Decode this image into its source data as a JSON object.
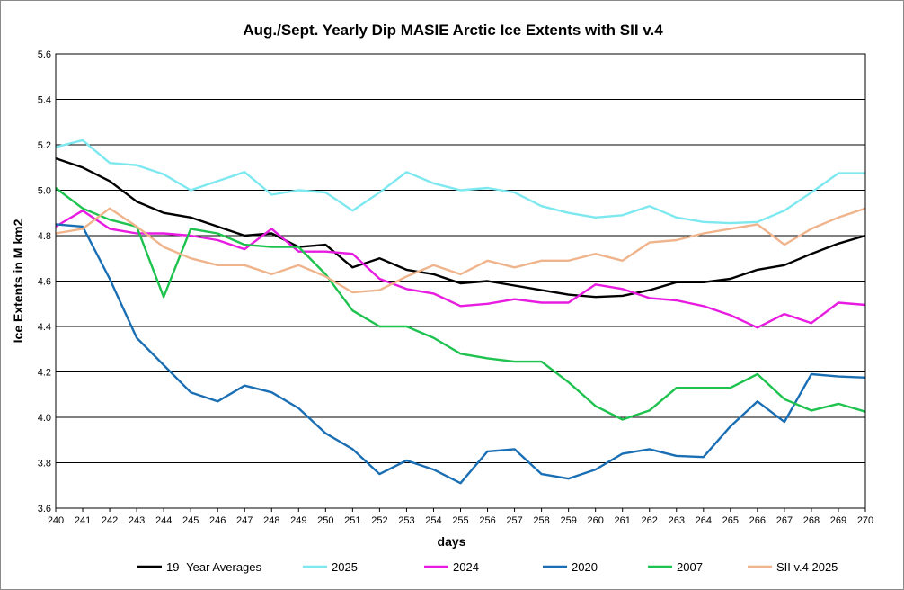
{
  "chart_data": {
    "type": "line",
    "title": "Aug./Sept. Yearly Dip MASIE Arctic Ice Extents with SII v.4",
    "xlabel": "days",
    "ylabel": "Ice Extents in M km2",
    "x": [
      240,
      241,
      242,
      243,
      244,
      245,
      246,
      247,
      248,
      249,
      250,
      251,
      252,
      253,
      254,
      255,
      256,
      257,
      258,
      259,
      260,
      261,
      262,
      263,
      264,
      265,
      266,
      267,
      268,
      269,
      270
    ],
    "xlim": [
      240,
      270
    ],
    "ylim": [
      3.6,
      5.6
    ],
    "yticks": [
      "3.6",
      "3.8",
      "4.0",
      "4.2",
      "4.4",
      "4.6",
      "4.8",
      "5.0",
      "5.2",
      "5.4",
      "5.6"
    ],
    "grid": "horizontal",
    "legend_position": "bottom",
    "series": [
      {
        "name": "19- Year Averages",
        "color": "#000000",
        "values": [
          5.14,
          5.1,
          5.04,
          4.95,
          4.9,
          4.88,
          4.84,
          4.8,
          4.81,
          4.75,
          4.76,
          4.66,
          4.7,
          4.65,
          4.63,
          4.59,
          4.6,
          4.58,
          4.56,
          4.54,
          4.53,
          4.535,
          4.56,
          4.595,
          4.595,
          4.61,
          4.65,
          4.67,
          4.72,
          4.765,
          4.8
        ]
      },
      {
        "name": "2025",
        "color": "#7ee8f0",
        "values": [
          5.19,
          5.22,
          5.12,
          5.11,
          5.07,
          5.0,
          5.04,
          5.08,
          4.98,
          5.0,
          4.99,
          4.91,
          4.99,
          5.08,
          5.03,
          5.0,
          5.01,
          4.99,
          4.93,
          4.9,
          4.88,
          4.89,
          4.93,
          4.88,
          4.86,
          4.855,
          4.86,
          4.91,
          4.99,
          5.075,
          5.075
        ]
      },
      {
        "name": "2024",
        "color": "#e81ce0",
        "values": [
          4.84,
          4.91,
          4.83,
          4.81,
          4.81,
          4.8,
          4.78,
          4.74,
          4.83,
          4.73,
          4.73,
          4.72,
          4.61,
          4.565,
          4.545,
          4.49,
          4.5,
          4.52,
          4.505,
          4.505,
          4.585,
          4.565,
          4.525,
          4.515,
          4.49,
          4.45,
          4.395,
          4.455,
          4.415,
          4.505,
          4.495
        ]
      },
      {
        "name": "2020",
        "color": "#1a6fb4",
        "values": [
          4.85,
          4.84,
          4.61,
          4.35,
          4.23,
          4.11,
          4.07,
          4.14,
          4.11,
          4.04,
          3.93,
          3.86,
          3.75,
          3.81,
          3.77,
          3.71,
          3.85,
          3.86,
          3.75,
          3.73,
          3.77,
          3.84,
          3.86,
          3.83,
          3.825,
          3.96,
          4.07,
          3.98,
          4.19,
          4.18,
          4.175
        ]
      },
      {
        "name": "2007",
        "color": "#1ec24e",
        "values": [
          5.01,
          4.92,
          4.87,
          4.84,
          4.53,
          4.83,
          4.81,
          4.76,
          4.75,
          4.75,
          4.63,
          4.47,
          4.4,
          4.4,
          4.35,
          4.28,
          4.26,
          4.245,
          4.245,
          4.155,
          4.05,
          3.99,
          4.03,
          4.13,
          4.13,
          4.13,
          4.19,
          4.08,
          4.03,
          4.06,
          4.025
        ]
      },
      {
        "name": "SII v.4 2025",
        "color": "#f0b48c",
        "values": [
          4.81,
          4.83,
          4.92,
          4.84,
          4.75,
          4.7,
          4.67,
          4.67,
          4.63,
          4.67,
          4.62,
          4.55,
          4.56,
          4.62,
          4.67,
          4.63,
          4.69,
          4.66,
          4.69,
          4.69,
          4.72,
          4.69,
          4.77,
          4.78,
          4.81,
          4.83,
          4.85,
          4.76,
          4.83,
          4.88,
          4.92
        ]
      }
    ]
  }
}
